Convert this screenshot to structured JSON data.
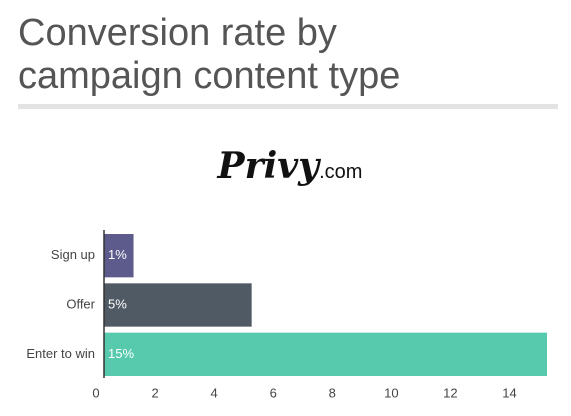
{
  "header": {
    "title_lines": [
      "Conversion rate by",
      "campaign content type"
    ],
    "logo": "Privy",
    "logo_suffix": ".com"
  },
  "chart_data": {
    "type": "bar",
    "orientation": "horizontal",
    "categories": [
      "Sign up",
      "Offer",
      "Enter to win"
    ],
    "values": [
      1,
      5,
      15
    ],
    "value_labels": [
      "1%",
      "5%",
      "15%"
    ],
    "colors": [
      "#5d5b8b",
      "#4f5a64",
      "#57c9ad"
    ],
    "xlim": [
      0,
      15
    ],
    "xticks": [
      0,
      2,
      4,
      6,
      8,
      10,
      12,
      14
    ],
    "grid": false
  }
}
